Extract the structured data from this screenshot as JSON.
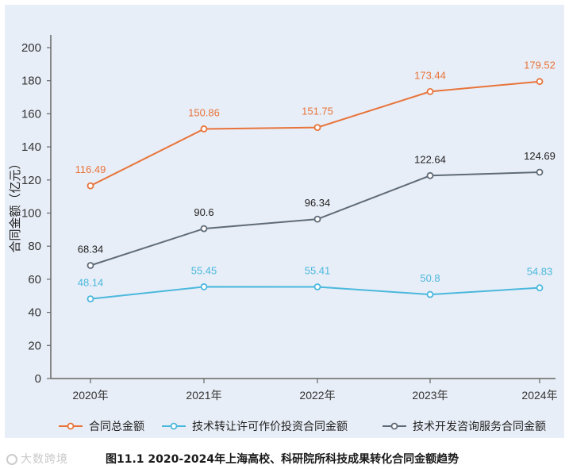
{
  "chart_data": {
    "type": "line",
    "title": "",
    "ylabel": "合同金额（亿元）",
    "xlabel": "",
    "categories": [
      "2020年",
      "2021年",
      "2022年",
      "2023年",
      "2024年"
    ],
    "yticks": [
      "0",
      "20",
      "40",
      "60",
      "80",
      "100",
      "120",
      "140",
      "160",
      "180",
      "200"
    ],
    "ylim": [
      0,
      200
    ],
    "grid": false,
    "legend_position": "bottom",
    "series": [
      {
        "name": "合同总金额",
        "color": "#e8743b",
        "values": [
          116.49,
          150.86,
          151.75,
          173.44,
          179.52
        ],
        "labels": [
          "116.49",
          "150.86",
          "151.75",
          "173.44",
          "179.52"
        ]
      },
      {
        "name": "技术转让许可作价投资合同金额",
        "color": "#4ab8dd",
        "values": [
          48.14,
          55.45,
          55.41,
          50.8,
          54.83
        ],
        "labels": [
          "48.14",
          "55.45",
          "55.41",
          "50.8",
          "54.83"
        ]
      },
      {
        "name": "技术开发咨询服务合同金额",
        "color": "#5f6b78",
        "values": [
          68.34,
          90.6,
          96.34,
          122.64,
          124.69
        ],
        "labels": [
          "68.34",
          "90.6",
          "96.34",
          "122.64",
          "124.69"
        ]
      }
    ]
  },
  "caption": {
    "text": "图11.1   2020-2024年上海高校、科研院所科技成果转化合同金额趋势",
    "watermark": "大数跨境"
  }
}
